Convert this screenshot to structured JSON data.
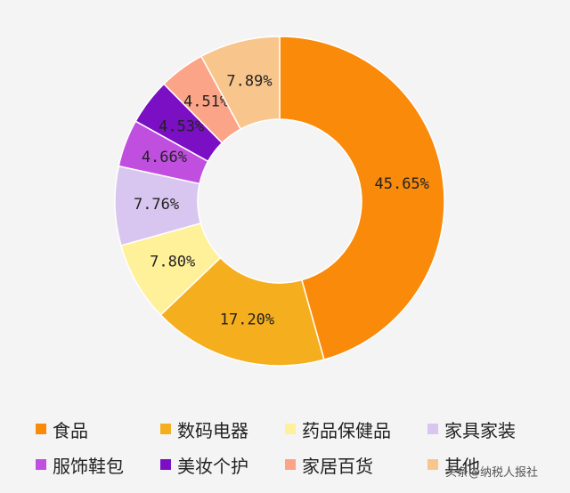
{
  "chart_data": {
    "type": "pie",
    "style": "donut",
    "slices": [
      {
        "label": "食品",
        "value": 45.65,
        "display": "45.65%",
        "color": "#f98a0a"
      },
      {
        "label": "数码电器",
        "value": 17.2,
        "display": "17.20%",
        "color": "#f5af1e"
      },
      {
        "label": "药品保健品",
        "value": 7.8,
        "display": "7.80%",
        "color": "#fff09a"
      },
      {
        "label": "家具家装",
        "value": 7.76,
        "display": "7.76%",
        "color": "#d9c6f0"
      },
      {
        "label": "服饰鞋包",
        "value": 4.66,
        "display": "4.66%",
        "color": "#c04fe0"
      },
      {
        "label": "美妆个护",
        "value": 4.53,
        "display": "4.53%",
        "color": "#7a0fc4"
      },
      {
        "label": "家居百货",
        "value": 4.51,
        "display": "4.51%",
        "color": "#fca487"
      },
      {
        "label": "其他",
        "value": 7.89,
        "display": "7.89%",
        "color": "#f8c68c"
      }
    ],
    "legend_position": "bottom"
  },
  "watermark": "头条@纳税人报社"
}
